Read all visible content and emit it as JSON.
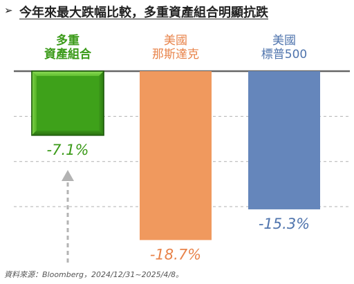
{
  "title": "今年來最大跌幅比較，多重資產組合明顯抗跌",
  "title_bullet": "➢",
  "source": "資料來源：Bloomberg，2024/12/31~2025/4/8。",
  "colors": {
    "multi_asset": "#3ea11a",
    "nasdaq": "#f0995e",
    "sp500": "#6586bb",
    "arrow": "#b3b3b3",
    "grid": "#b0b0b0"
  },
  "chart_data": {
    "type": "bar",
    "categories": [
      [
        "多重",
        "資產組合"
      ],
      [
        "美國",
        "那斯達克"
      ],
      [
        "美國",
        "標普500"
      ]
    ],
    "values": [
      -7.1,
      -18.7,
      -15.3
    ],
    "value_labels": [
      "-7.1%",
      "-18.7%",
      "-15.3%"
    ],
    "ylim": [
      -21.5,
      0
    ],
    "grid": true
  }
}
